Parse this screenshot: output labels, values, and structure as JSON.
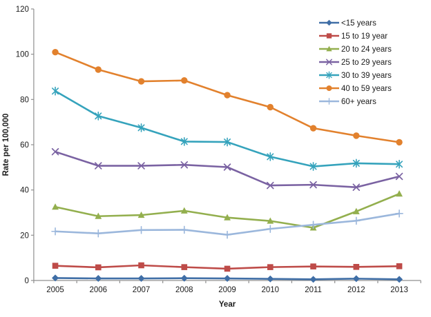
{
  "chart_data": {
    "type": "line",
    "title": "",
    "xlabel": "Year",
    "ylabel": "Rate per 100,000",
    "x": [
      "2005",
      "2006",
      "2007",
      "2008",
      "2009",
      "2010",
      "2011",
      "2012",
      "2013"
    ],
    "ylim": [
      0,
      120
    ],
    "y_ticks": [
      0,
      20,
      40,
      60,
      80,
      100,
      120
    ],
    "grid": false,
    "legend_position": "top-right",
    "axis_color": "#8f8f8f",
    "tick_text_color": "#1a1a1a",
    "series": [
      {
        "name": "<15 years",
        "color": "#3F6EA6",
        "marker": "diamond-marker-icon",
        "values": [
          1.1,
          0.9,
          0.9,
          1.0,
          0.9,
          0.7,
          0.5,
          0.8,
          0.5
        ]
      },
      {
        "name": "15 to 19 year",
        "color": "#BE4B48",
        "marker": "square-marker-icon",
        "values": [
          6.5,
          5.8,
          6.7,
          5.9,
          5.2,
          5.9,
          6.2,
          6.0,
          6.3
        ]
      },
      {
        "name": "20 to 24 years",
        "color": "#93AF4E",
        "marker": "triangle-marker-icon",
        "values": [
          32.5,
          28.4,
          28.9,
          30.8,
          27.8,
          26.3,
          23.3,
          30.5,
          38.3
        ]
      },
      {
        "name": "25 to 29 years",
        "color": "#7A62A2",
        "marker": "x-marker-icon",
        "values": [
          56.9,
          50.7,
          50.7,
          51.1,
          50.1,
          42.0,
          42.3,
          41.2,
          46.0
        ]
      },
      {
        "name": "30 to 39 years",
        "color": "#35A3BC",
        "marker": "asterisk-marker-icon",
        "values": [
          83.7,
          72.7,
          67.5,
          61.4,
          61.2,
          54.7,
          50.4,
          51.8,
          51.4
        ]
      },
      {
        "name": "40 to 59 years",
        "color": "#E2812D",
        "marker": "circle-marker-icon",
        "values": [
          100.9,
          93.2,
          88.0,
          88.4,
          81.9,
          76.6,
          67.3,
          64.0,
          61.1
        ]
      },
      {
        "name": "60+ years",
        "color": "#9BB7DC",
        "marker": "plus-marker-icon",
        "values": [
          21.7,
          20.8,
          22.3,
          22.4,
          20.2,
          22.8,
          24.6,
          26.4,
          29.6
        ]
      }
    ]
  }
}
